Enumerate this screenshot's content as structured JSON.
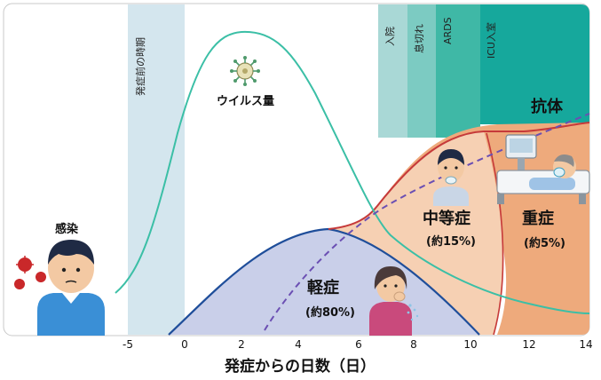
{
  "labels": {
    "pre_symptom_period": "発症前の時期",
    "virus_amount": "ウイルス量",
    "infection": "感染",
    "hospitalization": "入院",
    "shortness_of_breath": "息切れ",
    "ards": "ARDS",
    "icu": "ICU入室",
    "antibody": "抗体",
    "moderate": "中等症",
    "moderate_pct": "(約15%)",
    "severe": "重症",
    "severe_pct": "(約5%)",
    "mild": "軽症",
    "mild_pct": "(約80%)"
  },
  "x_axis": {
    "title": "発症からの日数（日）",
    "ticks": [
      "-5",
      "0",
      "2",
      "4",
      "6",
      "8",
      "10",
      "12",
      "14"
    ]
  },
  "colors": {
    "mild_fill": "#c9cfe9",
    "moderate_fill": "#f6d0b3",
    "severe_fill": "#eeaa7c",
    "virus_curve": "#3bbfa6",
    "antibody_line": "#6b4fb3",
    "mild_curve": "#1f4e9a",
    "moderate_curve": "#c63a3a",
    "band_pre": "#d4e6ee",
    "band_hosp": "#a9d8d6",
    "band_breath": "#7ccbc2",
    "band_ards": "#3fb8a6",
    "band_icu": "#16a89c"
  },
  "icons": [
    "virus-icon",
    "infected-person-icon",
    "coughing-woman-icon",
    "oxygen-patient-icon",
    "icu-patient-icon"
  ]
}
